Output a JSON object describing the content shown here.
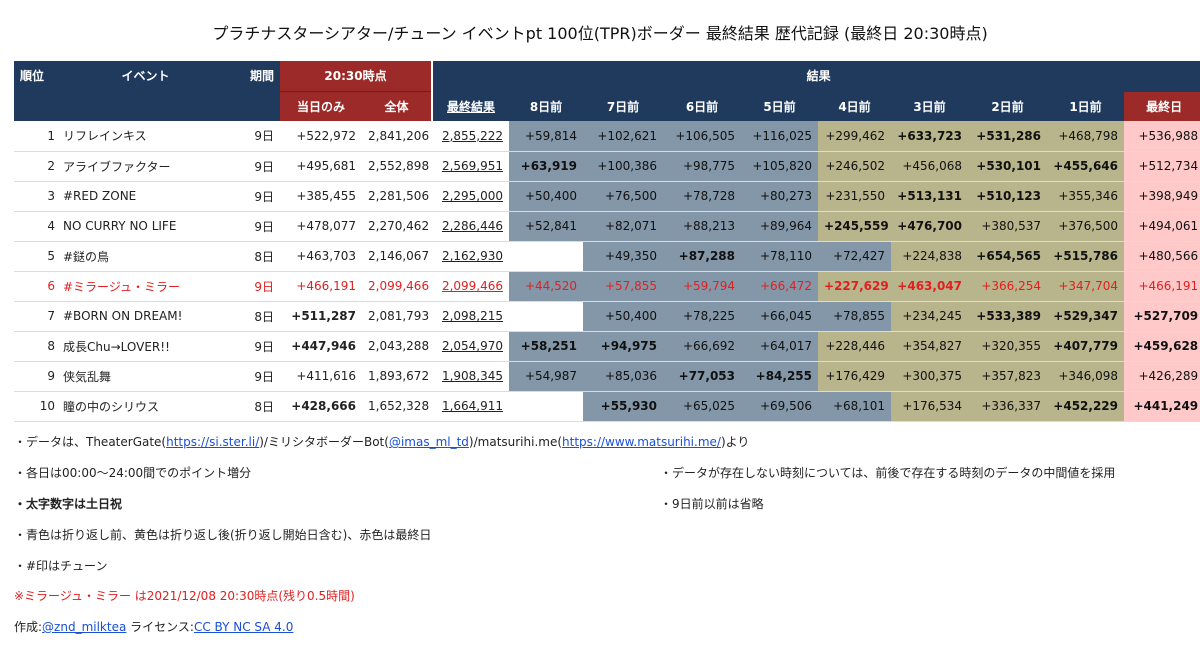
{
  "title": "プラチナスターシアター/チューン イベントpt 100位(TPR)ボーダー 最終結果 歴代記録 (最終日 20:30時点)",
  "header": {
    "rank": "順位",
    "event": "イベント",
    "period": "期間",
    "snapshot": "20:30時点",
    "today_only": "当日のみ",
    "total": "全体",
    "results": "結果",
    "final_result": "最終結果",
    "days": [
      "8日前",
      "7日前",
      "6日前",
      "5日前",
      "4日前",
      "3日前",
      "2日前",
      "1日前",
      "最終日"
    ]
  },
  "rows": [
    {
      "rank": "1",
      "name": "リフレインキス",
      "period": "9日",
      "today": "+522,972",
      "total": "2,841,206",
      "final": "2,855,222",
      "current": false,
      "cells": [
        [
          "+59,814",
          "blue",
          false
        ],
        [
          "+102,621",
          "blue",
          false
        ],
        [
          "+106,505",
          "blue",
          false
        ],
        [
          "+116,025",
          "blue",
          false
        ],
        [
          "+299,462",
          "olive",
          false
        ],
        [
          "+633,723",
          "olive",
          true
        ],
        [
          "+531,286",
          "olive",
          true
        ],
        [
          "+468,798",
          "olive",
          false
        ],
        [
          "+536,988",
          "pink",
          false
        ]
      ],
      "today_bold": false
    },
    {
      "rank": "2",
      "name": "アライブファクター",
      "period": "9日",
      "today": "+495,681",
      "total": "2,552,898",
      "final": "2,569,951",
      "current": false,
      "cells": [
        [
          "+63,919",
          "blue",
          true
        ],
        [
          "+100,386",
          "blue",
          false
        ],
        [
          "+98,775",
          "blue",
          false
        ],
        [
          "+105,820",
          "blue",
          false
        ],
        [
          "+246,502",
          "olive",
          false
        ],
        [
          "+456,068",
          "olive",
          false
        ],
        [
          "+530,101",
          "olive",
          true
        ],
        [
          "+455,646",
          "olive",
          true
        ],
        [
          "+512,734",
          "pink",
          false
        ]
      ],
      "today_bold": false
    },
    {
      "rank": "3",
      "name": "#RED ZONE",
      "period": "9日",
      "today": "+385,455",
      "total": "2,281,506",
      "final": "2,295,000",
      "current": false,
      "cells": [
        [
          "+50,400",
          "blue",
          false
        ],
        [
          "+76,500",
          "blue",
          false
        ],
        [
          "+78,728",
          "blue",
          false
        ],
        [
          "+80,273",
          "blue",
          false
        ],
        [
          "+231,550",
          "olive",
          false
        ],
        [
          "+513,131",
          "olive",
          true
        ],
        [
          "+510,123",
          "olive",
          true
        ],
        [
          "+355,346",
          "olive",
          false
        ],
        [
          "+398,949",
          "pink",
          false
        ]
      ],
      "today_bold": false
    },
    {
      "rank": "4",
      "name": "NO CURRY NO LIFE",
      "period": "9日",
      "today": "+478,077",
      "total": "2,270,462",
      "final": "2,286,446",
      "current": false,
      "cells": [
        [
          "+52,841",
          "blue",
          false
        ],
        [
          "+82,071",
          "blue",
          false
        ],
        [
          "+88,213",
          "blue",
          false
        ],
        [
          "+89,964",
          "blue",
          false
        ],
        [
          "+245,559",
          "olive",
          true
        ],
        [
          "+476,700",
          "olive",
          true
        ],
        [
          "+380,537",
          "olive",
          false
        ],
        [
          "+376,500",
          "olive",
          false
        ],
        [
          "+494,061",
          "pink",
          false
        ]
      ],
      "today_bold": false
    },
    {
      "rank": "5",
      "name": "#鎹の鳥",
      "period": "8日",
      "today": "+463,703",
      "total": "2,146,067",
      "final": "2,162,930",
      "current": false,
      "cells": [
        [
          "",
          "blank",
          false
        ],
        [
          "+49,350",
          "blue",
          false
        ],
        [
          "+87,288",
          "blue",
          true
        ],
        [
          "+78,110",
          "blue",
          false
        ],
        [
          "+72,427",
          "blue",
          false
        ],
        [
          "+224,838",
          "olive",
          false
        ],
        [
          "+654,565",
          "olive",
          true
        ],
        [
          "+515,786",
          "olive",
          true
        ],
        [
          "+480,566",
          "pink",
          false
        ]
      ],
      "today_bold": false
    },
    {
      "rank": "6",
      "name": "#ミラージュ・ミラー",
      "period": "9日",
      "today": "+466,191",
      "total": "2,099,466",
      "final": "2,099,466",
      "current": true,
      "cells": [
        [
          "+44,520",
          "blue",
          false
        ],
        [
          "+57,855",
          "blue",
          false
        ],
        [
          "+59,794",
          "blue",
          false
        ],
        [
          "+66,472",
          "blue",
          false
        ],
        [
          "+227,629",
          "olive",
          true
        ],
        [
          "+463,047",
          "olive",
          true
        ],
        [
          "+366,254",
          "olive",
          false
        ],
        [
          "+347,704",
          "olive",
          false
        ],
        [
          "+466,191",
          "pink",
          false
        ]
      ],
      "today_bold": false
    },
    {
      "rank": "7",
      "name": "#BORN ON DREAM!",
      "period": "8日",
      "today": "+511,287",
      "total": "2,081,793",
      "final": "2,098,215",
      "current": false,
      "cells": [
        [
          "",
          "blank",
          false
        ],
        [
          "+50,400",
          "blue",
          false
        ],
        [
          "+78,225",
          "blue",
          false
        ],
        [
          "+66,045",
          "blue",
          false
        ],
        [
          "+78,855",
          "blue",
          false
        ],
        [
          "+234,245",
          "olive",
          false
        ],
        [
          "+533,389",
          "olive",
          true
        ],
        [
          "+529,347",
          "olive",
          true
        ],
        [
          "+527,709",
          "pink",
          true
        ]
      ],
      "today_bold": true
    },
    {
      "rank": "8",
      "name": "成長Chu→LOVER!!",
      "period": "9日",
      "today": "+447,946",
      "total": "2,043,288",
      "final": "2,054,970",
      "current": false,
      "cells": [
        [
          "+58,251",
          "blue",
          true
        ],
        [
          "+94,975",
          "blue",
          true
        ],
        [
          "+66,692",
          "blue",
          false
        ],
        [
          "+64,017",
          "blue",
          false
        ],
        [
          "+228,446",
          "olive",
          false
        ],
        [
          "+354,827",
          "olive",
          false
        ],
        [
          "+320,355",
          "olive",
          false
        ],
        [
          "+407,779",
          "olive",
          true
        ],
        [
          "+459,628",
          "pink",
          true
        ]
      ],
      "today_bold": true
    },
    {
      "rank": "9",
      "name": "侠気乱舞",
      "period": "9日",
      "today": "+411,616",
      "total": "1,893,672",
      "final": "1,908,345",
      "current": false,
      "cells": [
        [
          "+54,987",
          "blue",
          false
        ],
        [
          "+85,036",
          "blue",
          false
        ],
        [
          "+77,053",
          "blue",
          true
        ],
        [
          "+84,255",
          "blue",
          true
        ],
        [
          "+176,429",
          "olive",
          false
        ],
        [
          "+300,375",
          "olive",
          false
        ],
        [
          "+357,823",
          "olive",
          false
        ],
        [
          "+346,098",
          "olive",
          false
        ],
        [
          "+426,289",
          "pink",
          false
        ]
      ],
      "today_bold": false
    },
    {
      "rank": "10",
      "name": "瞳の中のシリウス",
      "period": "8日",
      "today": "+428,666",
      "total": "1,652,328",
      "final": "1,664,911",
      "current": false,
      "cells": [
        [
          "",
          "blank",
          false
        ],
        [
          "+55,930",
          "blue",
          true
        ],
        [
          "+65,025",
          "blue",
          false
        ],
        [
          "+69,506",
          "blue",
          false
        ],
        [
          "+68,101",
          "blue",
          false
        ],
        [
          "+176,534",
          "olive",
          false
        ],
        [
          "+336,337",
          "olive",
          false
        ],
        [
          "+452,229",
          "olive",
          true
        ],
        [
          "+441,249",
          "pink",
          true
        ]
      ],
      "today_bold": true
    }
  ],
  "notes": {
    "source_prefix": "・データは、TheaterGate(",
    "source_link1": "https://si.ster.li/",
    "source_mid1": ")/ミリシタボーダーBot(",
    "source_link2": "@imas_ml_td",
    "source_mid2": ")/matsurihi.me(",
    "source_link3": "https://www.matsurihi.me/",
    "source_suffix": ")より",
    "daily": "・各日は00:00～24:00間でのポイント増分",
    "missing": "・データが存在しない時刻については、前後で存在する時刻のデータの中間値を採用",
    "bold_weekend": "・太字数字は土日祝",
    "omitted": "・9日前以前は省略",
    "colors": "・青色は折り返し前、黄色は折り返し後(折り返し開始日含む)、赤色は最終日",
    "tune": "・#印はチューン",
    "current": "※ミラージュ・ミラー は2021/12/08 20:30時点(残り0.5時間)",
    "author_prefix": "作成:",
    "author": "@znd_milktea",
    "license_prefix": " ライセンス:",
    "license": "CC BY NC SA 4.0"
  },
  "colors": {
    "header_navy": "#1f3a5c",
    "header_red": "#9c2a28",
    "blue": "#8497a8",
    "olive": "#b8b48c",
    "pink": "#ffc9c9",
    "current_red": "#e02020",
    "link": "#1a4fd6"
  }
}
